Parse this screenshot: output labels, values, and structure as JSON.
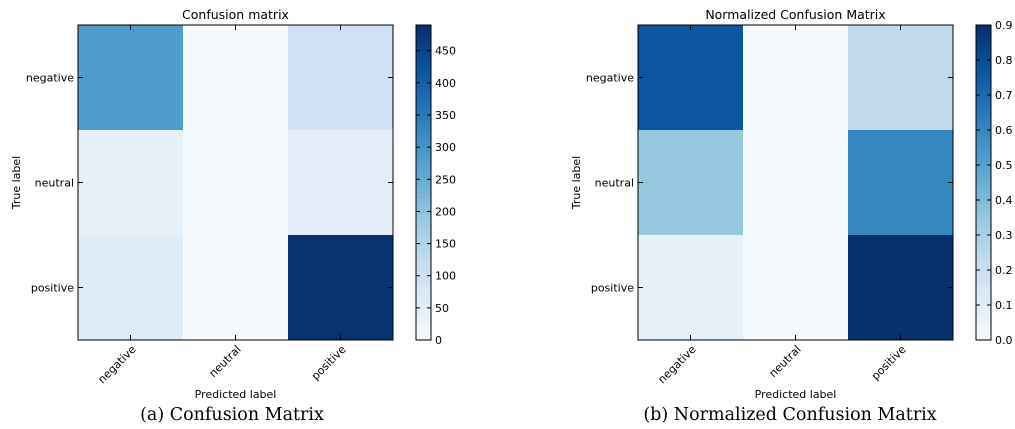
{
  "chart_data": [
    {
      "type": "heatmap",
      "title": "Confusion matrix",
      "xlabel": "Predicted label",
      "ylabel": "True label",
      "x_categories": [
        "negative",
        "neutral",
        "positive"
      ],
      "y_categories": [
        "negative",
        "neutral",
        "positive"
      ],
      "values": [
        [
          285,
          5,
          100
        ],
        [
          40,
          5,
          50
        ],
        [
          60,
          5,
          485
        ]
      ],
      "color_range": [
        0,
        490
      ],
      "colorbar_ticks": [
        0,
        50,
        100,
        150,
        200,
        250,
        300,
        350,
        400,
        450
      ],
      "colormap": "Blues",
      "caption": "(a) Confusion Matrix"
    },
    {
      "type": "heatmap",
      "title": "Normalized Confusion Matrix",
      "xlabel": "Predicted label",
      "ylabel": "True label",
      "x_categories": [
        "negative",
        "neutral",
        "positive"
      ],
      "y_categories": [
        "negative",
        "neutral",
        "positive"
      ],
      "values": [
        [
          0.77,
          0.01,
          0.24
        ],
        [
          0.35,
          0.01,
          0.6
        ],
        [
          0.08,
          0.01,
          0.91
        ]
      ],
      "color_range": [
        0,
        0.9
      ],
      "colorbar_ticks": [
        0.0,
        0.1,
        0.2,
        0.3,
        0.4,
        0.5,
        0.6,
        0.7,
        0.8,
        0.9
      ],
      "colormap": "Blues",
      "caption": "(b) Normalized Confusion Matrix"
    }
  ]
}
